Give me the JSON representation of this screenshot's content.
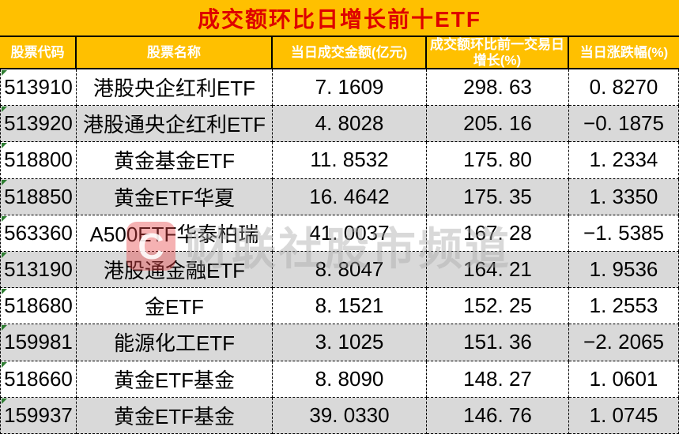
{
  "title": "成交额环比日增长前十ETF",
  "table": {
    "columns": [
      {
        "label": "股票代码"
      },
      {
        "label": "股票名称"
      },
      {
        "label": "当日成交金额(亿元)"
      },
      {
        "label": "成交额环比前一交易日增长(%)"
      },
      {
        "label": "当日涨跌幅(%)"
      }
    ],
    "rows": [
      {
        "code": "513910",
        "name": "港股央企红利ETF",
        "amount": "7. 1609",
        "growth": "298. 63",
        "change": "0. 8270"
      },
      {
        "code": "513920",
        "name": "港股通央企红利ETF",
        "amount": "4. 8028",
        "growth": "205. 16",
        "change": "−0. 1875"
      },
      {
        "code": "518800",
        "name": "黄金基金ETF",
        "amount": "11. 8532",
        "growth": "175. 80",
        "change": "1. 2334"
      },
      {
        "code": "518850",
        "name": "黄金ETF华夏",
        "amount": "16. 4642",
        "growth": "175. 35",
        "change": "1. 3350"
      },
      {
        "code": "563360",
        "name": "A500ETF华泰柏瑞",
        "amount": "41. 0037",
        "growth": "167. 28",
        "change": "−1. 5385"
      },
      {
        "code": "513190",
        "name": "港股通金融ETF",
        "amount": "8. 8047",
        "growth": "164. 21",
        "change": "1. 9536"
      },
      {
        "code": "518680",
        "name": "金ETF",
        "amount": "8. 1521",
        "growth": "152. 25",
        "change": "1. 2553"
      },
      {
        "code": "159981",
        "name": "能源化工ETF",
        "amount": "3. 1025",
        "growth": "151. 36",
        "change": "−2. 2065"
      },
      {
        "code": "518660",
        "name": "黄金ETF基金",
        "amount": "8. 8090",
        "growth": "148. 27",
        "change": "1. 0601"
      },
      {
        "code": "159937",
        "name": "黄金ETF基金",
        "amount": "39. 0330",
        "growth": "146. 76",
        "change": "1. 0745"
      }
    ]
  },
  "watermark": {
    "logo_letter": "C",
    "text": "财联社股市频道"
  },
  "colors": {
    "header_bg": "#FFC000",
    "title_text": "#DE0000",
    "header_text": "#FFFFFF",
    "alt_row_bg": "#D9D9D9",
    "error_indicator": "#2E7D32"
  }
}
